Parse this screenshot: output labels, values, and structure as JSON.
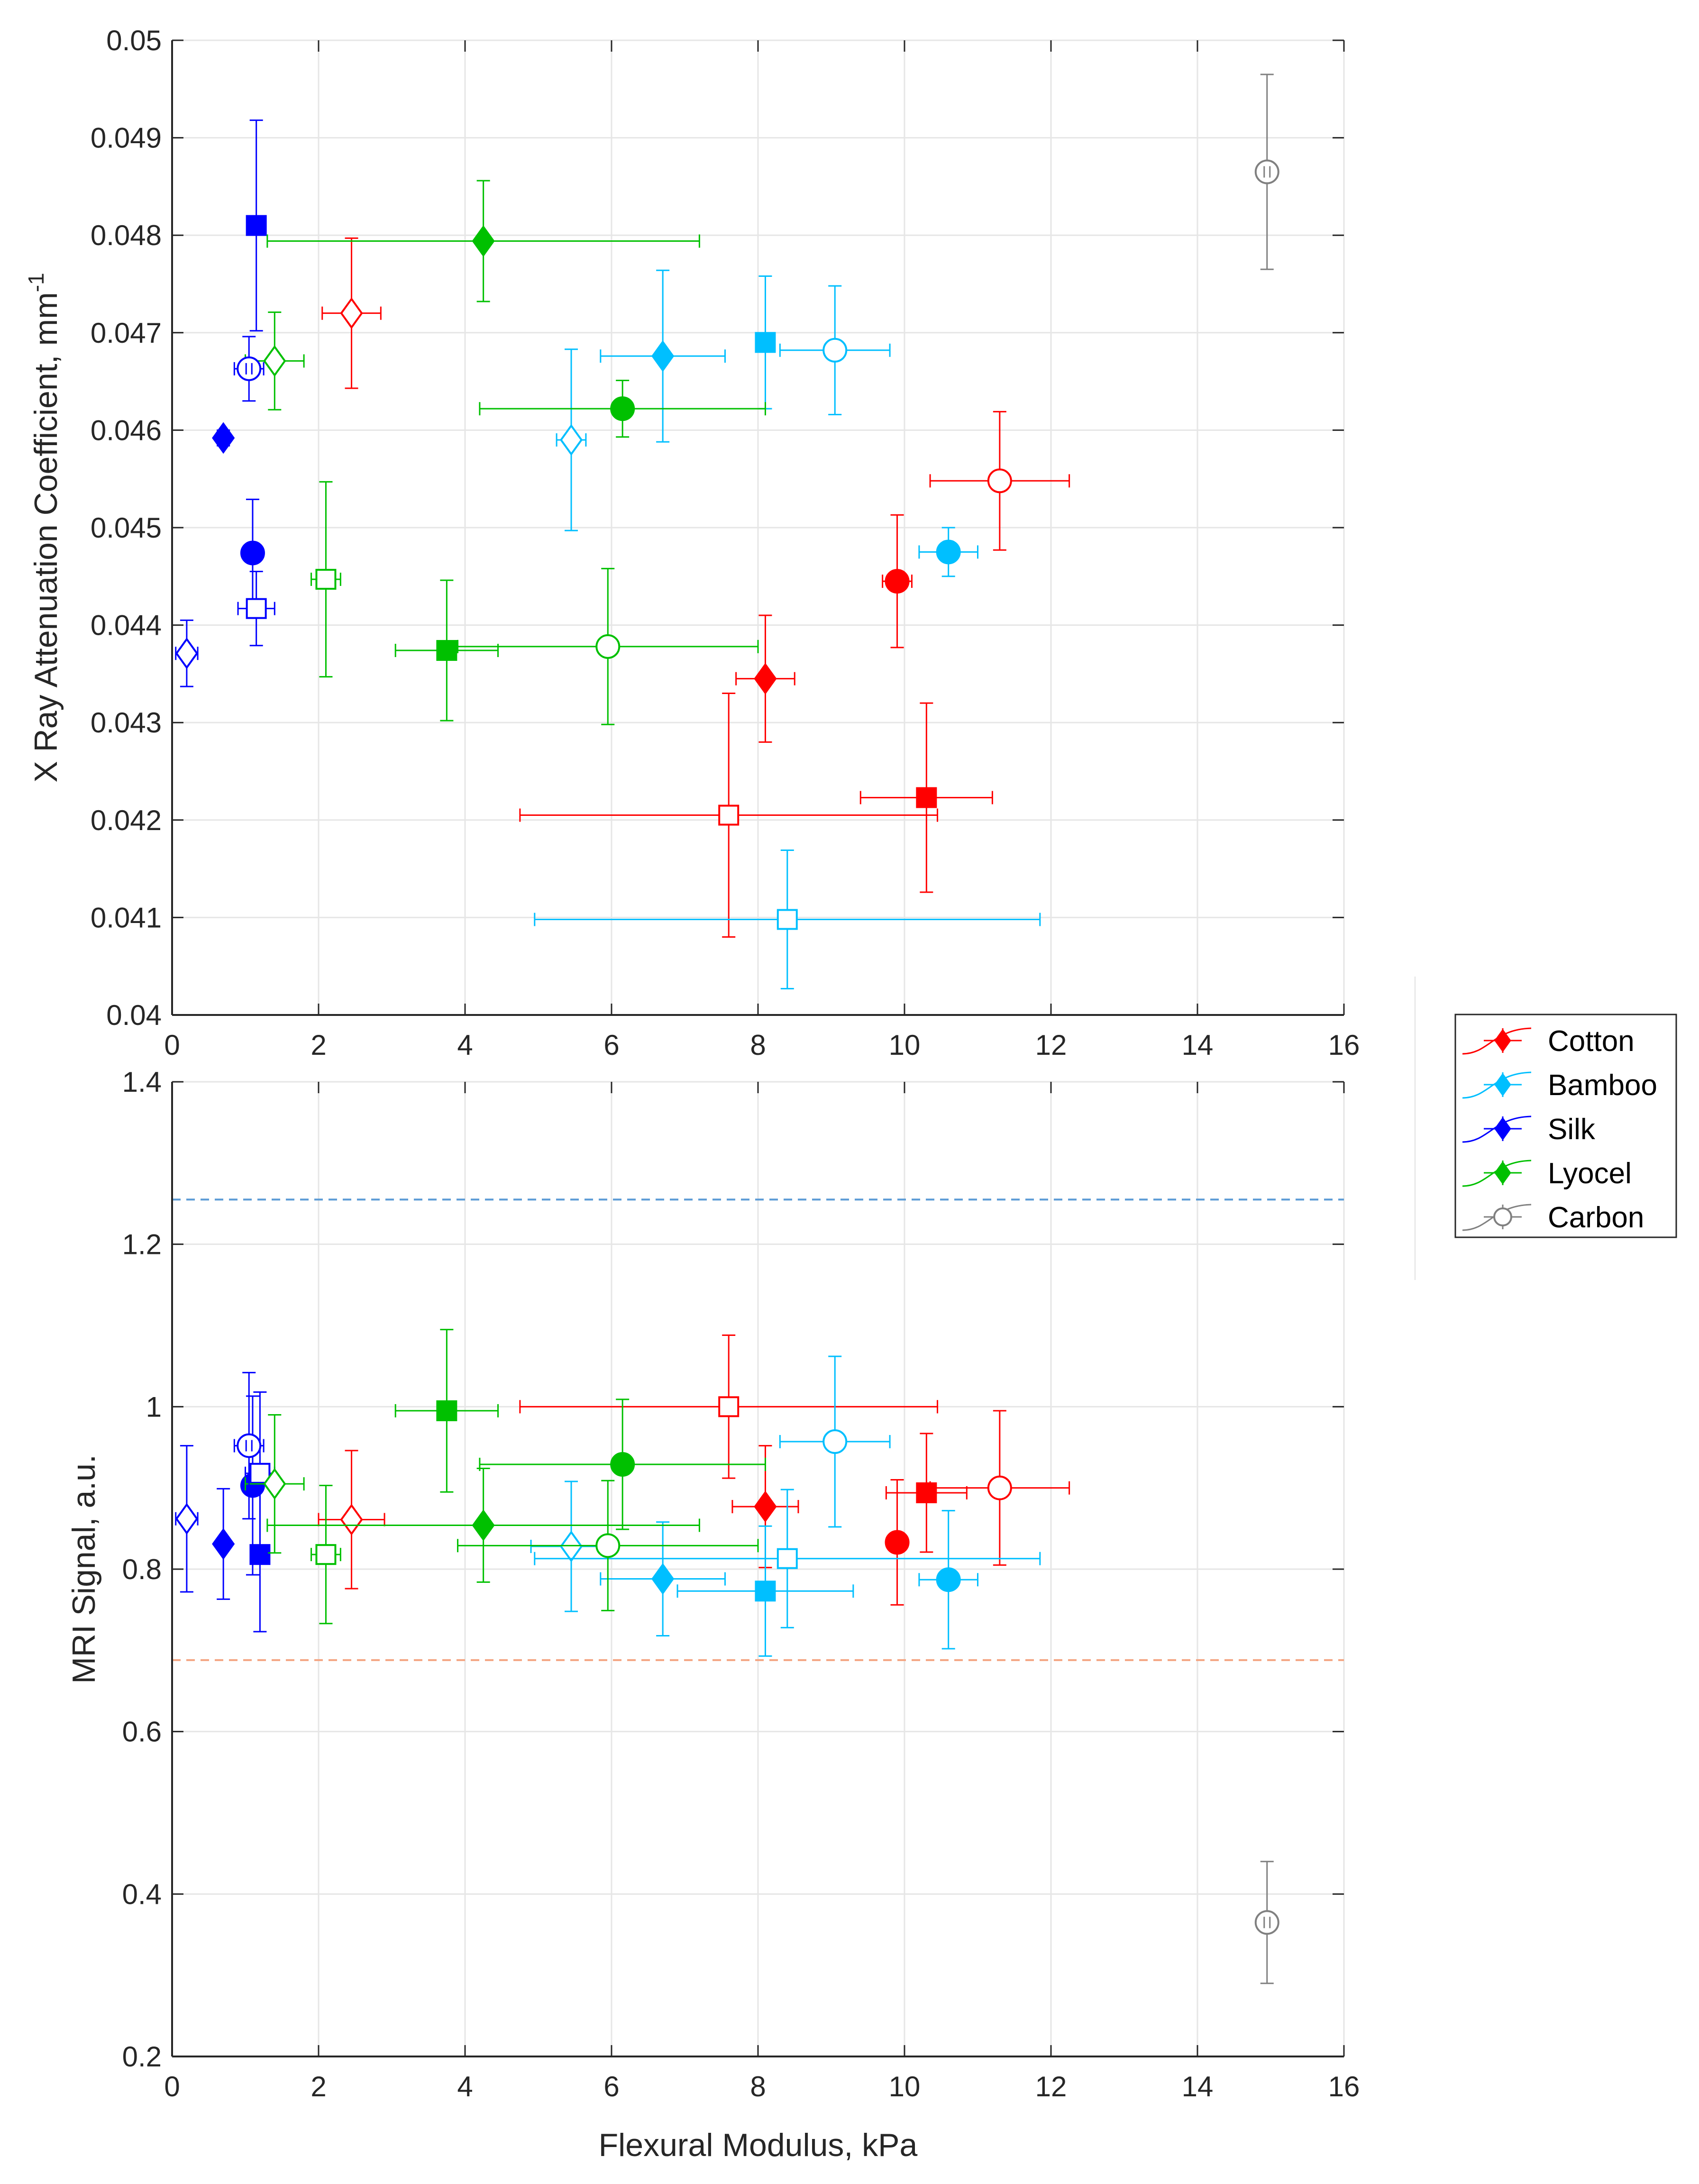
{
  "colors": {
    "Cotton": "#ff0000",
    "Bamboo": "#00bfff",
    "Silk": "#0000ff",
    "Lyocel": "#00c000",
    "Carbon": "#808080",
    "ref_blue": "#5b9bd5",
    "ref_orange": "#f4a582",
    "grid": "#e6e6e6",
    "axis": "#262626"
  },
  "legend": {
    "entries": [
      {
        "name": "Cotton",
        "label": "Cotton"
      },
      {
        "name": "Bamboo",
        "label": "Bamboo"
      },
      {
        "name": "Silk",
        "label": "Silk"
      },
      {
        "name": "Lyocel",
        "label": "Lyocel"
      },
      {
        "name": "Carbon",
        "label": "Carbon"
      }
    ]
  },
  "chart_data": [
    {
      "type": "scatter",
      "id": "xray",
      "title": "",
      "xlabel": "",
      "ylabel": "X Ray Attenuation Coefficient, mm",
      "ylabel_superscript": "-1",
      "xlim": [
        0,
        16
      ],
      "ylim": [
        0.04,
        0.05
      ],
      "xticks": [
        "0",
        "2",
        "4",
        "6",
        "8",
        "10",
        "12",
        "14",
        "16"
      ],
      "yticks": [
        "0.04",
        "0.041",
        "0.042",
        "0.043",
        "0.044",
        "0.045",
        "0.046",
        "0.047",
        "0.048",
        "0.049",
        "0.05"
      ],
      "grid": true,
      "points": [
        {
          "series": "Cotton",
          "marker": "diamond",
          "filled": true,
          "x": 8.1,
          "y": 0.04345,
          "xerr": 0.4,
          "yerr": 0.00065
        },
        {
          "series": "Cotton",
          "marker": "circle",
          "filled": true,
          "x": 9.9,
          "y": 0.04445,
          "xerr": 0.2,
          "yerr": 0.00068
        },
        {
          "series": "Cotton",
          "marker": "square",
          "filled": true,
          "x": 10.3,
          "y": 0.04223,
          "xerr": 0.9,
          "yerr": 0.00097
        },
        {
          "series": "Cotton",
          "marker": "diamond",
          "filled": false,
          "x": 2.45,
          "y": 0.0472,
          "xerr": 0.4,
          "yerr": 0.00077
        },
        {
          "series": "Cotton",
          "marker": "square",
          "filled": false,
          "x": 7.6,
          "y": 0.04205,
          "xerr": 2.85,
          "yerr": 0.00125
        },
        {
          "series": "Cotton",
          "marker": "circle",
          "filled": false,
          "x": 11.3,
          "y": 0.04548,
          "xerr": 0.95,
          "yerr": 0.00071
        },
        {
          "series": "Bamboo",
          "marker": "diamond",
          "filled": true,
          "x": 6.7,
          "y": 0.04676,
          "xerr": 0.85,
          "yerr": 0.00088
        },
        {
          "series": "Bamboo",
          "marker": "circle",
          "filled": true,
          "x": 10.6,
          "y": 0.04475,
          "xerr": 0.4,
          "yerr": 0.00025
        },
        {
          "series": "Bamboo",
          "marker": "square",
          "filled": true,
          "x": 8.1,
          "y": 0.0469,
          "xerr": 0.0,
          "yerr": 0.00068
        },
        {
          "series": "Bamboo",
          "marker": "diamond",
          "filled": false,
          "x": 5.45,
          "y": 0.0459,
          "xerr": 0.2,
          "yerr": 0.00093
        },
        {
          "series": "Bamboo",
          "marker": "square",
          "filled": false,
          "x": 8.4,
          "y": 0.04098,
          "xerr": 3.45,
          "yerr": 0.00071
        },
        {
          "series": "Bamboo",
          "marker": "circle",
          "filled": false,
          "x": 9.05,
          "y": 0.04682,
          "xerr": 0.75,
          "yerr": 0.00066
        },
        {
          "series": "Silk",
          "marker": "diamond",
          "filled": true,
          "x": 0.7,
          "y": 0.04592,
          "xerr": 0.05,
          "yerr": 8e-05
        },
        {
          "series": "Silk",
          "marker": "circle",
          "filled": true,
          "x": 1.1,
          "y": 0.04474,
          "xerr": 0.0,
          "yerr": 0.00055
        },
        {
          "series": "Silk",
          "marker": "square",
          "filled": true,
          "x": 1.15,
          "y": 0.0481,
          "xerr": 0.0,
          "yerr": 0.00108
        },
        {
          "series": "Silk",
          "marker": "diamond",
          "filled": false,
          "x": 0.2,
          "y": 0.04371,
          "xerr": 0.15,
          "yerr": 0.00034
        },
        {
          "series": "Silk",
          "marker": "square",
          "filled": false,
          "x": 1.15,
          "y": 0.04417,
          "xerr": 0.25,
          "yerr": 0.00038
        },
        {
          "series": "Lyocel",
          "marker": "diamond",
          "filled": true,
          "x": 4.25,
          "y": 0.04794,
          "xerr": 2.95,
          "yerr": 0.00062
        },
        {
          "series": "Lyocel",
          "marker": "circle",
          "filled": true,
          "x": 6.15,
          "y": 0.04622,
          "xerr": 1.95,
          "yerr": 0.00029
        },
        {
          "series": "Lyocel",
          "marker": "square",
          "filled": true,
          "x": 3.75,
          "y": 0.04374,
          "xerr": 0.7,
          "yerr": 0.00072
        },
        {
          "series": "Lyocel",
          "marker": "diamond",
          "filled": false,
          "x": 1.4,
          "y": 0.04671,
          "xerr": 0.4,
          "yerr": 0.0005
        },
        {
          "series": "Lyocel",
          "marker": "square",
          "filled": false,
          "x": 2.1,
          "y": 0.04447,
          "xerr": 0.2,
          "yerr": 0.001
        },
        {
          "series": "Lyocel",
          "marker": "circle",
          "filled": false,
          "x": 5.95,
          "y": 0.04378,
          "xerr": 2.05,
          "yerr": 0.0008
        },
        {
          "series": "Carbon",
          "marker": "circle-ii",
          "filled": false,
          "x": 14.95,
          "y": 0.04865,
          "xerr": 0.0,
          "yerr": 0.001
        },
        {
          "series": "Silk",
          "marker": "circle-ii",
          "filled": false,
          "x": 1.05,
          "y": 0.04663,
          "xerr": 0.2,
          "yerr": 0.00033
        }
      ]
    },
    {
      "type": "scatter",
      "id": "mri",
      "title": "",
      "xlabel": "Flexural Modulus, kPa",
      "ylabel": "MRI Signal, a.u.",
      "xlim": [
        0,
        16
      ],
      "ylim": [
        0.2,
        1.4
      ],
      "xticks": [
        "0",
        "2",
        "4",
        "6",
        "8",
        "10",
        "12",
        "14",
        "16"
      ],
      "yticks": [
        "0.2",
        "0.4",
        "0.6",
        "0.8",
        "1",
        "1.2",
        "1.4"
      ],
      "grid": true,
      "reference_lines": [
        {
          "name": "blue-reference",
          "y": 1.255,
          "color": "ref_blue"
        },
        {
          "name": "orange-reference",
          "y": 0.688,
          "color": "ref_orange"
        }
      ],
      "points": [
        {
          "series": "Cotton",
          "marker": "diamond",
          "filled": true,
          "x": 8.1,
          "y": 0.877,
          "xerr": 0.45,
          "yerr": 0.075
        },
        {
          "series": "Cotton",
          "marker": "circle",
          "filled": true,
          "x": 9.9,
          "y": 0.833,
          "xerr": 0.0,
          "yerr": 0.077
        },
        {
          "series": "Cotton",
          "marker": "square",
          "filled": true,
          "x": 10.3,
          "y": 0.894,
          "xerr": 0.55,
          "yerr": 0.073
        },
        {
          "series": "Cotton",
          "marker": "diamond",
          "filled": false,
          "x": 2.45,
          "y": 0.861,
          "xerr": 0.45,
          "yerr": 0.085
        },
        {
          "series": "Cotton",
          "marker": "square",
          "filled": false,
          "x": 7.6,
          "y": 1.0,
          "xerr": 2.85,
          "yerr": 0.088
        },
        {
          "series": "Cotton",
          "marker": "circle",
          "filled": false,
          "x": 11.3,
          "y": 0.9,
          "xerr": 0.95,
          "yerr": 0.095
        },
        {
          "series": "Bamboo",
          "marker": "diamond",
          "filled": true,
          "x": 6.7,
          "y": 0.788,
          "xerr": 0.85,
          "yerr": 0.07
        },
        {
          "series": "Bamboo",
          "marker": "circle",
          "filled": true,
          "x": 10.6,
          "y": 0.787,
          "xerr": 0.4,
          "yerr": 0.085
        },
        {
          "series": "Bamboo",
          "marker": "square",
          "filled": true,
          "x": 8.1,
          "y": 0.773,
          "xerr": 1.2,
          "yerr": 0.08
        },
        {
          "series": "Bamboo",
          "marker": "diamond",
          "filled": false,
          "x": 5.45,
          "y": 0.828,
          "xerr": 0.55,
          "yerr": 0.08
        },
        {
          "series": "Bamboo",
          "marker": "square",
          "filled": false,
          "x": 8.4,
          "y": 0.813,
          "xerr": 3.45,
          "yerr": 0.085
        },
        {
          "series": "Bamboo",
          "marker": "circle",
          "filled": false,
          "x": 9.05,
          "y": 0.957,
          "xerr": 0.75,
          "yerr": 0.105
        },
        {
          "series": "Silk",
          "marker": "diamond",
          "filled": true,
          "x": 0.7,
          "y": 0.831,
          "xerr": 0.0,
          "yerr": 0.068
        },
        {
          "series": "Silk",
          "marker": "circle",
          "filled": true,
          "x": 1.1,
          "y": 0.903,
          "xerr": 0.0,
          "yerr": 0.11
        },
        {
          "series": "Silk",
          "marker": "square",
          "filled": true,
          "x": 1.2,
          "y": 0.818,
          "xerr": 0.0,
          "yerr": 0.095
        },
        {
          "series": "Silk",
          "marker": "diamond",
          "filled": false,
          "x": 0.2,
          "y": 0.862,
          "xerr": 0.15,
          "yerr": 0.09
        },
        {
          "series": "Silk",
          "marker": "square",
          "filled": false,
          "x": 1.2,
          "y": 0.918,
          "xerr": 0.2,
          "yerr": 0.1
        },
        {
          "series": "Lyocel",
          "marker": "diamond",
          "filled": true,
          "x": 4.25,
          "y": 0.854,
          "xerr": 2.95,
          "yerr": 0.07
        },
        {
          "series": "Lyocel",
          "marker": "circle",
          "filled": true,
          "x": 6.15,
          "y": 0.929,
          "xerr": 1.95,
          "yerr": 0.08
        },
        {
          "series": "Lyocel",
          "marker": "square",
          "filled": true,
          "x": 3.75,
          "y": 0.995,
          "xerr": 0.7,
          "yerr": 0.1
        },
        {
          "series": "Lyocel",
          "marker": "diamond",
          "filled": false,
          "x": 1.4,
          "y": 0.905,
          "xerr": 0.4,
          "yerr": 0.085
        },
        {
          "series": "Lyocel",
          "marker": "square",
          "filled": false,
          "x": 2.1,
          "y": 0.818,
          "xerr": 0.2,
          "yerr": 0.085
        },
        {
          "series": "Lyocel",
          "marker": "circle",
          "filled": false,
          "x": 5.95,
          "y": 0.829,
          "xerr": 2.05,
          "yerr": 0.08
        },
        {
          "series": "Carbon",
          "marker": "circle-ii",
          "filled": false,
          "x": 14.95,
          "y": 0.365,
          "xerr": 0.0,
          "yerr": 0.075
        },
        {
          "series": "Silk",
          "marker": "circle-ii",
          "filled": false,
          "x": 1.05,
          "y": 0.952,
          "xerr": 0.2,
          "yerr": 0.09
        }
      ]
    }
  ]
}
